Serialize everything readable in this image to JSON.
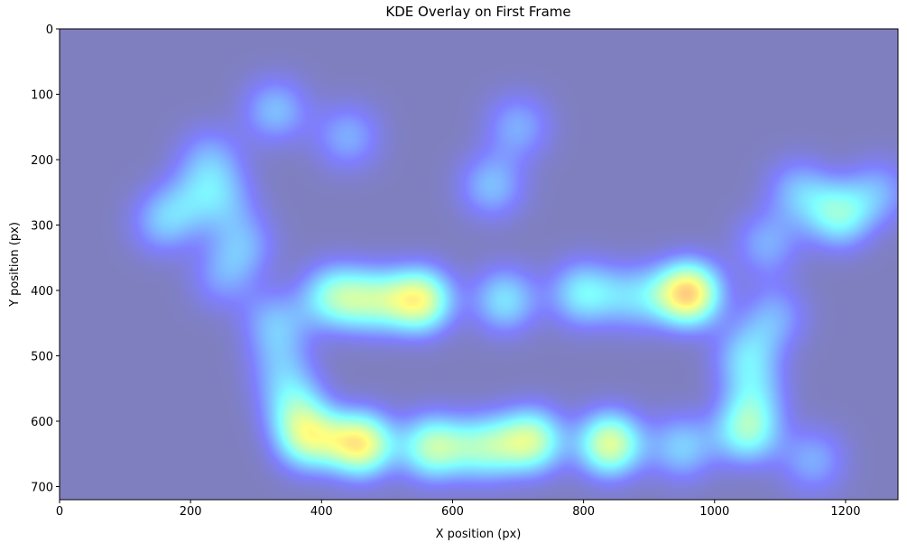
{
  "chart_data": {
    "type": "kde",
    "title": "KDE Overlay on First Frame",
    "xlabel": "X position (px)",
    "ylabel": "Y position (px)",
    "xlim": [
      0,
      1280
    ],
    "ylim": [
      720,
      0
    ],
    "xticks": [
      0,
      200,
      400,
      600,
      800,
      1000,
      1200
    ],
    "yticks": [
      0,
      100,
      200,
      300,
      400,
      500,
      600,
      700
    ],
    "colormap": "jet",
    "points": {
      "x": [
        330,
        440,
        230,
        250,
        160,
        280,
        700,
        660,
        420,
        550,
        480,
        680,
        800,
        960,
        880,
        1190,
        1130,
        1250,
        1080,
        1050,
        1060,
        1050,
        360,
        380,
        460,
        570,
        720,
        840,
        650,
        950,
        1150,
        330,
        340,
        1090,
        250,
        200
      ],
      "y": [
        125,
        165,
        200,
        260,
        295,
        330,
        150,
        240,
        410,
        415,
        415,
        415,
        405,
        405,
        410,
        285,
        250,
        250,
        330,
        500,
        560,
        615,
        580,
        625,
        635,
        640,
        630,
        635,
        640,
        640,
        660,
        450,
        520,
        440,
        380,
        260
      ],
      "density": [
        0.35,
        0.3,
        0.3,
        0.3,
        0.35,
        0.3,
        0.3,
        0.35,
        0.6,
        0.85,
        0.6,
        0.45,
        0.5,
        1,
        0.4,
        0.55,
        0.35,
        0.3,
        0.3,
        0.4,
        0.35,
        0.6,
        0.45,
        0.75,
        0.9,
        0.7,
        0.75,
        0.8,
        0.6,
        0.4,
        0.3,
        0.35,
        0.3,
        0.3,
        0.25,
        0.25
      ]
    }
  }
}
